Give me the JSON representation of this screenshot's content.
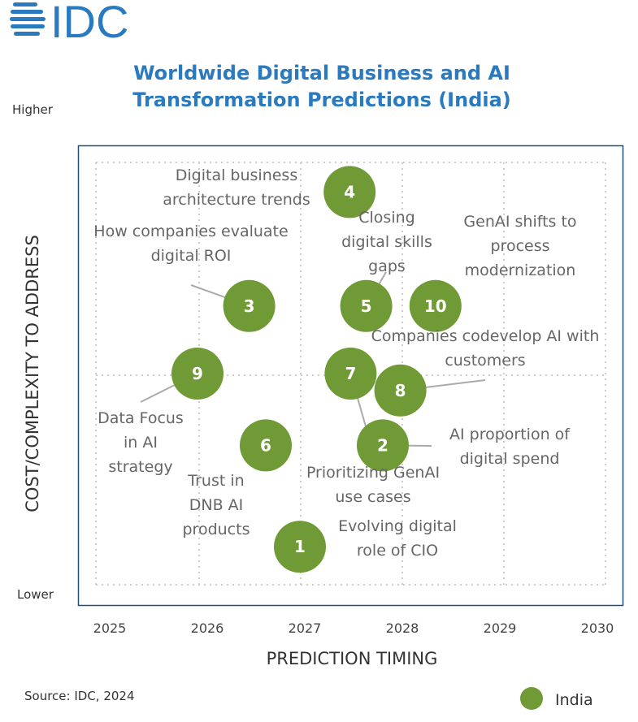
{
  "logo": {
    "text": "IDC",
    "color": "#2a7abf"
  },
  "chart_data": {
    "type": "scatter",
    "title": [
      "Worldwide Digital Business and AI",
      "Transformation Predictions (India)"
    ],
    "xlabel": "PREDICTION TIMING",
    "ylabel": "COST/COMPLEXITY TO ADDRESS",
    "y_high_label": "Higher",
    "y_low_label": "Lower",
    "xlim": [
      2025,
      2030
    ],
    "ylim": [
      0,
      10
    ],
    "x_ticks": [
      "2025",
      "2026",
      "2027",
      "2028",
      "2029",
      "2030"
    ],
    "grid": true,
    "legend": {
      "placement": "bottom-right",
      "entries": [
        {
          "name": "India",
          "color": "#6f9a35"
        }
      ]
    },
    "source": "Source: IDC, 2024",
    "points": [
      {
        "id": "1",
        "x": 2026.95,
        "y": 0.9,
        "label": [
          "Evolving digital",
          "role of CIO"
        ]
      },
      {
        "id": "2",
        "x": 2027.8,
        "y": 3.3,
        "label": [
          "AI proportion of",
          "digital spend"
        ]
      },
      {
        "id": "3",
        "x": 2026.43,
        "y": 6.6,
        "label": [
          "How companies evaluate",
          "digital ROI"
        ]
      },
      {
        "id": "4",
        "x": 2027.46,
        "y": 9.3,
        "label": [
          "Digital business",
          "architecture trends"
        ]
      },
      {
        "id": "5",
        "x": 2027.63,
        "y": 6.6,
        "label": [
          "Closing",
          "digital skills",
          "gaps"
        ]
      },
      {
        "id": "6",
        "x": 2026.6,
        "y": 3.3,
        "label": [
          "Trust in",
          "DNB AI",
          "products"
        ]
      },
      {
        "id": "7",
        "x": 2027.47,
        "y": 5.0,
        "label": [
          "Prioritizing GenAI",
          "use cases"
        ]
      },
      {
        "id": "8",
        "x": 2027.98,
        "y": 4.6,
        "label": [
          "Companies codevelop AI with",
          "customers"
        ]
      },
      {
        "id": "9",
        "x": 2025.9,
        "y": 5.0,
        "label": [
          "Data Focus",
          "in AI",
          "strategy"
        ]
      },
      {
        "id": "10",
        "x": 2028.34,
        "y": 6.6,
        "label": [
          "GenAI shifts to",
          "process",
          "modernization"
        ]
      }
    ]
  }
}
